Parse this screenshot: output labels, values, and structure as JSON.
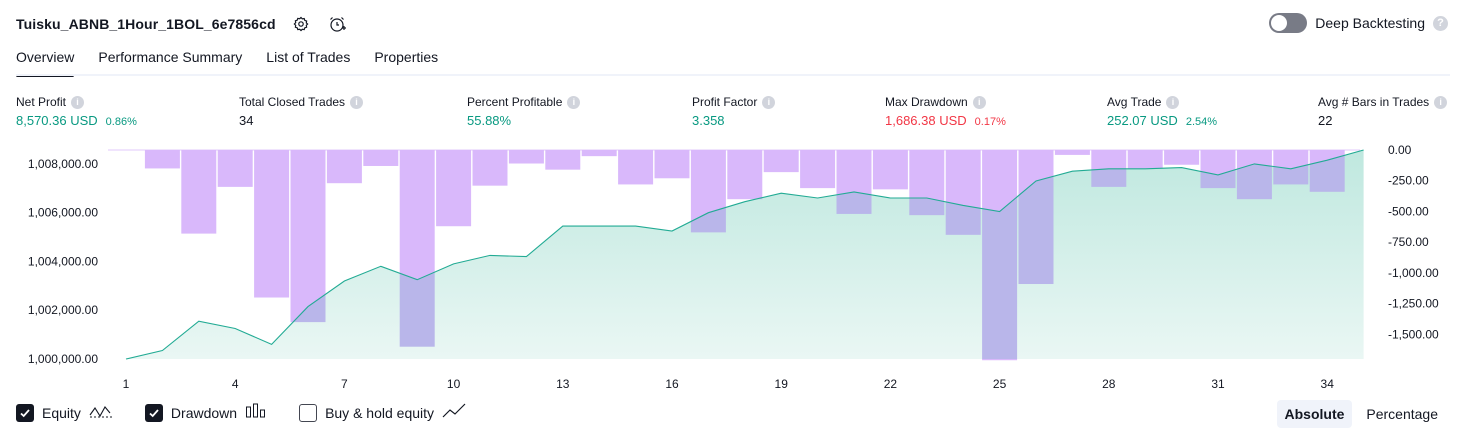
{
  "header": {
    "title": "Tuisku_ABNB_1Hour_1BOL_6e7856cd",
    "deep_backtesting_label": "Deep Backtesting",
    "help_glyph": "?"
  },
  "tabs": [
    {
      "label": "Overview",
      "active": true
    },
    {
      "label": "Performance Summary",
      "active": false
    },
    {
      "label": "List of Trades",
      "active": false
    },
    {
      "label": "Properties",
      "active": false
    }
  ],
  "metrics": {
    "net_profit": {
      "label": "Net Profit",
      "value": "8,570.36 USD",
      "pct": "0.86%"
    },
    "total_closed_trades": {
      "label": "Total Closed Trades",
      "value": "34"
    },
    "percent_profitable": {
      "label": "Percent Profitable",
      "value": "55.88%"
    },
    "profit_factor": {
      "label": "Profit Factor",
      "value": "3.358"
    },
    "max_drawdown": {
      "label": "Max Drawdown",
      "value": "1,686.38 USD",
      "pct": "0.17%"
    },
    "avg_trade": {
      "label": "Avg Trade",
      "value": "252.07 USD",
      "pct": "2.54%"
    },
    "avg_bars": {
      "label": "Avg # Bars in Trades",
      "value": "22"
    }
  },
  "legend": {
    "equity": {
      "label": "Equity",
      "checked": true
    },
    "drawdown": {
      "label": "Drawdown",
      "checked": true
    },
    "buy_hold": {
      "label": "Buy & hold equity",
      "checked": false
    }
  },
  "modes": {
    "absolute": "Absolute",
    "percentage": "Percentage",
    "active": "absolute"
  },
  "colors": {
    "equity_line": "#22ab94",
    "equity_fill_top": "#bfe8df",
    "equity_fill_bottom": "#eaf7f4",
    "drawdown_bar": "#d9b8fb",
    "drawdown_overlap": "#b9b6ea",
    "positive": "#089981",
    "negative": "#f23645"
  },
  "chart_data": {
    "type": "line",
    "x_ticks": [
      "1",
      "4",
      "7",
      "10",
      "13",
      "16",
      "19",
      "22",
      "25",
      "28",
      "31",
      "34"
    ],
    "left_axis_ticks": [
      "1,008,000.00",
      "1,006,000.00",
      "1,004,000.00",
      "1,002,000.00",
      "1,000,000.00"
    ],
    "right_axis_ticks": [
      "0.00",
      "-250.00",
      "-500.00",
      "-750.00",
      "-1,000.00",
      "-1,250.00",
      "-1,500.00"
    ],
    "left_ylim": [
      1000000,
      1008570
    ],
    "right_ylim": [
      -1700,
      0
    ],
    "series": [
      {
        "name": "Equity",
        "x": [
          1,
          2,
          3,
          4,
          5,
          6,
          7,
          8,
          9,
          10,
          11,
          12,
          13,
          14,
          15,
          16,
          17,
          18,
          19,
          20,
          21,
          22,
          23,
          24,
          25,
          26,
          27,
          28,
          29,
          30,
          31,
          32,
          33,
          34,
          35
        ],
        "values": [
          1000000,
          1000350,
          1001550,
          1001250,
          1000600,
          1002150,
          1003200,
          1003800,
          1003250,
          1003900,
          1004250,
          1004200,
          1005450,
          1005450,
          1005450,
          1005250,
          1006000,
          1006450,
          1006800,
          1006600,
          1006850,
          1006600,
          1006600,
          1006300,
          1006050,
          1007300,
          1007700,
          1007800,
          1007800,
          1007850,
          1007550,
          1008000,
          1007800,
          1008150,
          1008570
        ]
      },
      {
        "name": "Drawdown",
        "x": [
          1,
          2,
          3,
          4,
          5,
          6,
          7,
          8,
          9,
          10,
          11,
          12,
          13,
          14,
          15,
          16,
          17,
          18,
          19,
          20,
          21,
          22,
          23,
          24,
          25,
          26,
          27,
          28,
          29,
          30,
          31,
          32,
          33,
          34,
          35
        ],
        "values": [
          0,
          -150,
          -680,
          -300,
          -1200,
          -1400,
          -270,
          -130,
          -1600,
          -620,
          -290,
          -110,
          -160,
          -50,
          -280,
          -230,
          -670,
          -400,
          -180,
          -310,
          -520,
          -320,
          -530,
          -690,
          -1710,
          -1090,
          -40,
          -300,
          -150,
          -120,
          -310,
          -400,
          -280,
          -340,
          0
        ]
      }
    ]
  }
}
